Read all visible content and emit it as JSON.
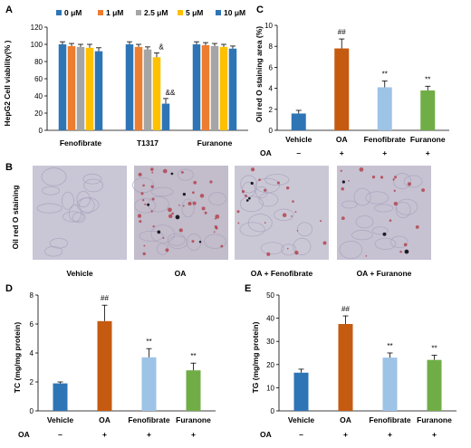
{
  "panels": {
    "A": "A",
    "B": "B",
    "C": "C",
    "D": "D",
    "E": "E"
  },
  "colors": {
    "c0": "#2e75b6",
    "c1": "#ed7d31",
    "c2": "#a5a5a5",
    "c3": "#ffc000",
    "c4": "#2e75b6",
    "vehicle": "#2e75b6",
    "oa": "#c55a11",
    "feno": "#9dc3e6",
    "furanone": "#70ad47"
  },
  "microscopy": {
    "ylabel": "Oil red O staining",
    "labels": [
      "Vehicle",
      "OA",
      "OA + Fenofibrate",
      "OA + Furanone"
    ]
  },
  "oa_row": {
    "label": "OA",
    "signs": [
      "–",
      "+",
      "+",
      "+"
    ]
  },
  "chart_data": [
    {
      "id": "A",
      "type": "bar",
      "ylabel": "HepG2 Cell viability(% )",
      "ylim": [
        0,
        120
      ],
      "yticks": [
        "0",
        "20",
        "40",
        "60",
        "80",
        "100",
        "120"
      ],
      "categories": [
        "Fenofibrate",
        "T1317",
        "Furanone"
      ],
      "legend_position": "top",
      "series": [
        {
          "name": "0 μM",
          "values": [
            100,
            100,
            100
          ],
          "errors": [
            3,
            3,
            3
          ]
        },
        {
          "name": "1 μM",
          "values": [
            98,
            97,
            99
          ],
          "errors": [
            3,
            3,
            3
          ]
        },
        {
          "name": "2.5 μM",
          "values": [
            97,
            94,
            98
          ],
          "errors": [
            3,
            3,
            3
          ]
        },
        {
          "name": "5 μM",
          "values": [
            96,
            85,
            97
          ],
          "errors": [
            4,
            5,
            3
          ]
        },
        {
          "name": "10 μM",
          "values": [
            92,
            31,
            95
          ],
          "errors": [
            4,
            6,
            3
          ]
        }
      ],
      "annotations": [
        {
          "category": 1,
          "series": 3,
          "text": "&"
        },
        {
          "category": 1,
          "series": 4,
          "text": "&&"
        }
      ]
    },
    {
      "id": "C",
      "type": "bar",
      "ylabel": "Oil red O staining area (%)",
      "ylim": [
        0,
        10
      ],
      "yticks": [
        "0",
        "2",
        "4",
        "6",
        "8",
        "10"
      ],
      "categories": [
        "Vehicle",
        "OA",
        "Fenofibrate",
        "Furanone"
      ],
      "values": [
        1.6,
        7.8,
        4.1,
        3.8
      ],
      "errors": [
        0.3,
        0.9,
        0.6,
        0.4
      ],
      "annotations": [
        "",
        "##",
        "**",
        "**"
      ]
    },
    {
      "id": "D",
      "type": "bar",
      "ylabel": "TC (mg/mg protein)",
      "ylim": [
        0,
        8
      ],
      "yticks": [
        "0",
        "2",
        "4",
        "6",
        "8"
      ],
      "categories": [
        "Vehicle",
        "OA",
        "Fenofibrate",
        "Furanone"
      ],
      "values": [
        1.9,
        6.2,
        3.7,
        2.8
      ],
      "errors": [
        0.1,
        1.1,
        0.6,
        0.5
      ],
      "annotations": [
        "",
        "##",
        "**",
        "**"
      ]
    },
    {
      "id": "E",
      "type": "bar",
      "ylabel": "TG (mg/mg protein)",
      "ylim": [
        0,
        50
      ],
      "yticks": [
        "0",
        "10",
        "20",
        "30",
        "40",
        "50"
      ],
      "categories": [
        "Vehicle",
        "OA",
        "Fenofibrate",
        "Furanone"
      ],
      "values": [
        16.5,
        37.5,
        23,
        22
      ],
      "errors": [
        1.5,
        3.5,
        2,
        2
      ],
      "annotations": [
        "",
        "##",
        "**",
        "**"
      ]
    }
  ]
}
